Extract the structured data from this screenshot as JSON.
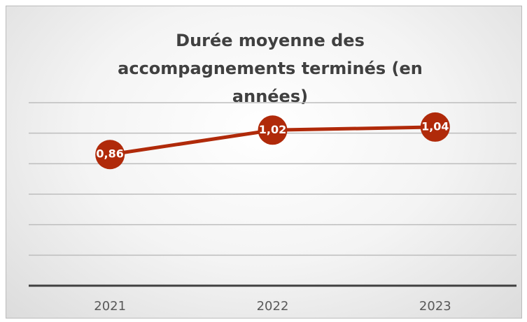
{
  "chart_data": {
    "type": "line",
    "title": "Durée moyenne des accompagnements terminés (en années)",
    "categories": [
      "2021",
      "2022",
      "2023"
    ],
    "series": [
      {
        "name": "Durée moyenne",
        "color": "#b02a0a",
        "values": [
          0.86,
          1.02,
          1.04
        ],
        "value_labels": [
          "0,86",
          "1,02",
          "1,04"
        ]
      }
    ],
    "ylim": [
      0,
      1.2
    ],
    "yticks": [
      0,
      0.2,
      0.4,
      0.6,
      0.8,
      1,
      1.2
    ],
    "grid": true
  }
}
